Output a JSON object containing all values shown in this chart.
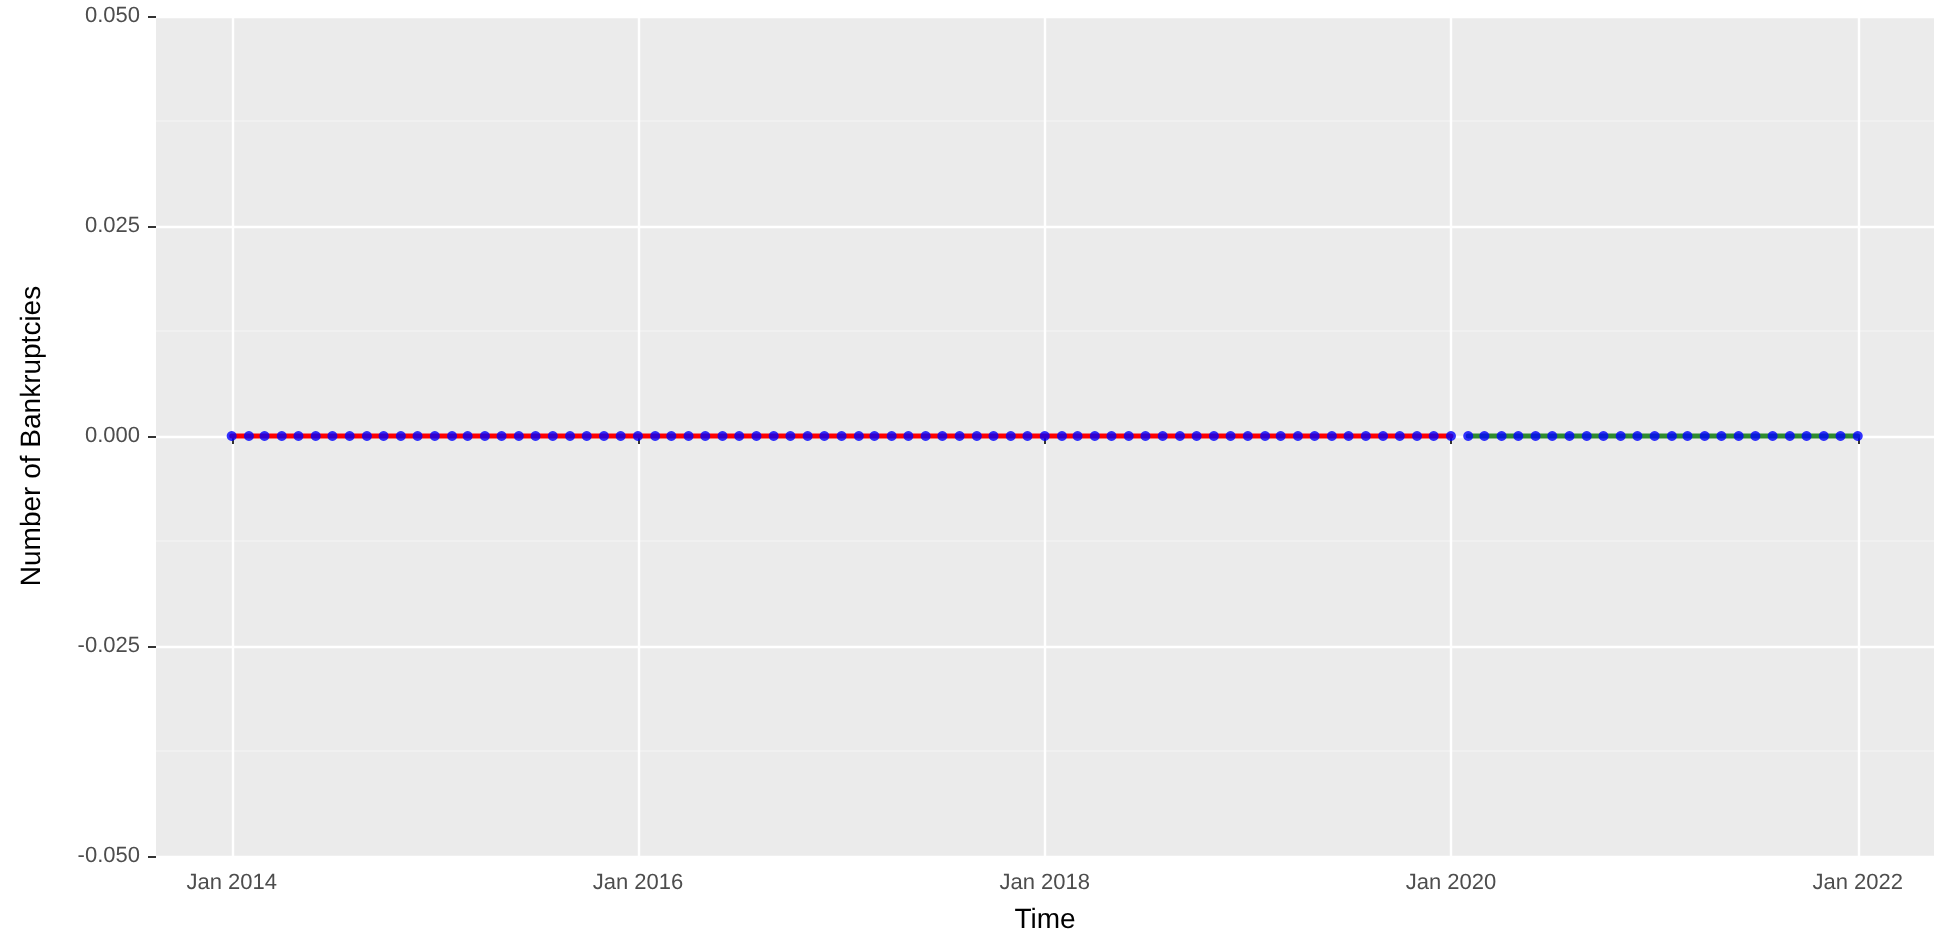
{
  "chart_data": {
    "type": "line",
    "xlabel": "Time",
    "ylabel": "Number of Bankruptcies",
    "xlim": [
      "2013-08-18",
      "2022-05-18"
    ],
    "xticks": [
      {
        "value": "2014-01-01",
        "label": "Jan 2014"
      },
      {
        "value": "2016-01-01",
        "label": "Jan 2016"
      },
      {
        "value": "2018-01-01",
        "label": "Jan 2018"
      },
      {
        "value": "2020-01-01",
        "label": "Jan 2020"
      },
      {
        "value": "2022-01-01",
        "label": "Jan 2022"
      }
    ],
    "ylim": [
      -0.05,
      0.05
    ],
    "yticks": [
      {
        "value": -0.05,
        "label": "-0.050"
      },
      {
        "value": -0.025,
        "label": "-0.025"
      },
      {
        "value": 0,
        "label": "0.000"
      },
      {
        "value": 0.025,
        "label": "0.025"
      },
      {
        "value": 0.05,
        "label": "0.050"
      }
    ],
    "grid": true,
    "line_style": "solid",
    "series": [
      {
        "type": "scatter",
        "color": "#0000ff",
        "marker": "circle",
        "x": [
          "2014-01",
          "2014-02",
          "2014-03",
          "2014-04",
          "2014-05",
          "2014-06",
          "2014-07",
          "2014-08",
          "2014-09",
          "2014-10",
          "2014-11",
          "2014-12",
          "2015-01",
          "2015-02",
          "2015-03",
          "2015-04",
          "2015-05",
          "2015-06",
          "2015-07",
          "2015-08",
          "2015-09",
          "2015-10",
          "2015-11",
          "2015-12",
          "2016-01",
          "2016-02",
          "2016-03",
          "2016-04",
          "2016-05",
          "2016-06",
          "2016-07",
          "2016-08",
          "2016-09",
          "2016-10",
          "2016-11",
          "2016-12",
          "2017-01",
          "2017-02",
          "2017-03",
          "2017-04",
          "2017-05",
          "2017-06",
          "2017-07",
          "2017-08",
          "2017-09",
          "2017-10",
          "2017-11",
          "2017-12",
          "2018-01",
          "2018-02",
          "2018-03",
          "2018-04",
          "2018-05",
          "2018-06",
          "2018-07",
          "2018-08",
          "2018-09",
          "2018-10",
          "2018-11",
          "2018-12",
          "2019-01",
          "2019-02",
          "2019-03",
          "2019-04",
          "2019-05",
          "2019-06",
          "2019-07",
          "2019-08",
          "2019-09",
          "2019-10",
          "2019-11",
          "2019-12",
          "2020-01",
          "2020-02",
          "2020-03",
          "2020-04",
          "2020-05",
          "2020-06",
          "2020-07",
          "2020-08",
          "2020-09",
          "2020-10",
          "2020-11",
          "2020-12",
          "2021-01",
          "2021-02",
          "2021-03",
          "2021-04",
          "2021-05",
          "2021-06",
          "2021-07",
          "2021-08",
          "2021-09",
          "2021-10",
          "2021-11",
          "2021-12",
          "2022-01"
        ],
        "values": [
          0,
          0,
          0,
          0,
          0,
          0,
          0,
          0,
          0,
          0,
          0,
          0,
          0,
          0,
          0,
          0,
          0,
          0,
          0,
          0,
          0,
          0,
          0,
          0,
          0,
          0,
          0,
          0,
          0,
          0,
          0,
          0,
          0,
          0,
          0,
          0,
          0,
          0,
          0,
          0,
          0,
          0,
          0,
          0,
          0,
          0,
          0,
          0,
          0,
          0,
          0,
          0,
          0,
          0,
          0,
          0,
          0,
          0,
          0,
          0,
          0,
          0,
          0,
          0,
          0,
          0,
          0,
          0,
          0,
          0,
          0,
          0,
          0,
          0,
          0,
          0,
          0,
          0,
          0,
          0,
          0,
          0,
          0,
          0,
          0,
          0,
          0,
          0,
          0,
          0,
          0,
          0,
          0,
          0,
          0,
          0,
          0
        ]
      },
      {
        "color": "#ff0000",
        "marker": "none",
        "x": [
          "2014-01",
          "2014-02",
          "2014-03",
          "2014-04",
          "2014-05",
          "2014-06",
          "2014-07",
          "2014-08",
          "2014-09",
          "2014-10",
          "2014-11",
          "2014-12",
          "2015-01",
          "2015-02",
          "2015-03",
          "2015-04",
          "2015-05",
          "2015-06",
          "2015-07",
          "2015-08",
          "2015-09",
          "2015-10",
          "2015-11",
          "2015-12",
          "2016-01",
          "2016-02",
          "2016-03",
          "2016-04",
          "2016-05",
          "2016-06",
          "2016-07",
          "2016-08",
          "2016-09",
          "2016-10",
          "2016-11",
          "2016-12",
          "2017-01",
          "2017-02",
          "2017-03",
          "2017-04",
          "2017-05",
          "2017-06",
          "2017-07",
          "2017-08",
          "2017-09",
          "2017-10",
          "2017-11",
          "2017-12",
          "2018-01",
          "2018-02",
          "2018-03",
          "2018-04",
          "2018-05",
          "2018-06",
          "2018-07",
          "2018-08",
          "2018-09",
          "2018-10",
          "2018-11",
          "2018-12",
          "2019-01",
          "2019-02",
          "2019-03",
          "2019-04",
          "2019-05",
          "2019-06",
          "2019-07",
          "2019-08",
          "2019-09",
          "2019-10",
          "2019-11",
          "2019-12",
          "2020-01"
        ],
        "values": [
          0,
          0,
          0,
          0,
          0,
          0,
          0,
          0,
          0,
          0,
          0,
          0,
          0,
          0,
          0,
          0,
          0,
          0,
          0,
          0,
          0,
          0,
          0,
          0,
          0,
          0,
          0,
          0,
          0,
          0,
          0,
          0,
          0,
          0,
          0,
          0,
          0,
          0,
          0,
          0,
          0,
          0,
          0,
          0,
          0,
          0,
          0,
          0,
          0,
          0,
          0,
          0,
          0,
          0,
          0,
          0,
          0,
          0,
          0,
          0,
          0,
          0,
          0,
          0,
          0,
          0,
          0,
          0,
          0,
          0,
          0,
          0,
          0
        ]
      },
      {
        "color": "#2e8b2e",
        "marker": "none",
        "x": [
          "2020-02",
          "2020-03",
          "2020-04",
          "2020-05",
          "2020-06",
          "2020-07",
          "2020-08",
          "2020-09",
          "2020-10",
          "2020-11",
          "2020-12",
          "2021-01",
          "2021-02",
          "2021-03",
          "2021-04",
          "2021-05",
          "2021-06",
          "2021-07",
          "2021-08",
          "2021-09",
          "2021-10",
          "2021-11",
          "2021-12",
          "2022-01"
        ],
        "values": [
          0,
          0,
          0,
          0,
          0,
          0,
          0,
          0,
          0,
          0,
          0,
          0,
          0,
          0,
          0,
          0,
          0,
          0,
          0,
          0,
          0,
          0,
          0,
          0
        ]
      }
    ]
  }
}
